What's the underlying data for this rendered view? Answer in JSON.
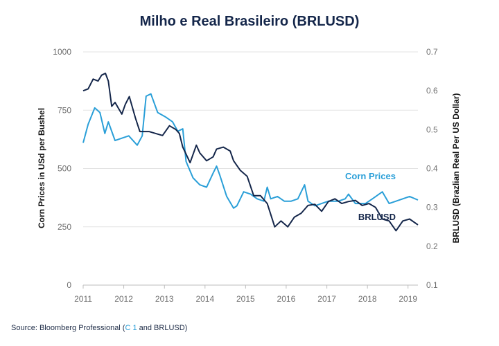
{
  "chart_data": {
    "type": "line",
    "title": "Milho e Real Brasileiro (BRLUSD)",
    "x_ticks": [
      "2011",
      "2012",
      "2013",
      "2014",
      "2015",
      "2016",
      "2017",
      "2018",
      "2019"
    ],
    "x_range": [
      "2011-01-01",
      "2019-03-31"
    ],
    "y_left": {
      "label": "Corn Prices in USd per Bushel",
      "ticks": [
        "0",
        "250",
        "500",
        "750",
        "1000"
      ],
      "range": [
        0,
        1000
      ]
    },
    "y_right": {
      "label": "BRLUSD (Brazlian Real Per US Dollar)",
      "ticks": [
        "0.1",
        "0.2",
        "0.3",
        "0.4",
        "0.5",
        "0.6",
        "0.7"
      ],
      "range": [
        0.1,
        0.7
      ]
    },
    "grid": true,
    "series": [
      {
        "name": "Corn Prices",
        "axis": "left",
        "color": "#2a9fd8",
        "points": [
          [
            "2011-01-01",
            610
          ],
          [
            "2011-02-15",
            690
          ],
          [
            "2011-04-15",
            760
          ],
          [
            "2011-06-01",
            740
          ],
          [
            "2011-07-15",
            650
          ],
          [
            "2011-08-15",
            700
          ],
          [
            "2011-10-15",
            620
          ],
          [
            "2011-12-15",
            630
          ],
          [
            "2012-02-15",
            640
          ],
          [
            "2012-05-01",
            600
          ],
          [
            "2012-06-15",
            640
          ],
          [
            "2012-07-20",
            810
          ],
          [
            "2012-09-01",
            820
          ],
          [
            "2012-11-01",
            740
          ],
          [
            "2013-01-15",
            720
          ],
          [
            "2013-03-15",
            700
          ],
          [
            "2013-05-01",
            660
          ],
          [
            "2013-06-15",
            670
          ],
          [
            "2013-07-15",
            530
          ],
          [
            "2013-09-15",
            460
          ],
          [
            "2013-11-15",
            430
          ],
          [
            "2014-01-15",
            420
          ],
          [
            "2014-03-15",
            480
          ],
          [
            "2014-04-15",
            510
          ],
          [
            "2014-05-15",
            470
          ],
          [
            "2014-07-15",
            380
          ],
          [
            "2014-09-15",
            330
          ],
          [
            "2014-10-15",
            340
          ],
          [
            "2014-12-15",
            400
          ],
          [
            "2015-02-15",
            390
          ],
          [
            "2015-04-15",
            370
          ],
          [
            "2015-06-15",
            360
          ],
          [
            "2015-07-15",
            420
          ],
          [
            "2015-08-15",
            370
          ],
          [
            "2015-10-15",
            380
          ],
          [
            "2015-12-15",
            360
          ],
          [
            "2016-02-15",
            360
          ],
          [
            "2016-04-15",
            370
          ],
          [
            "2016-05-15",
            400
          ],
          [
            "2016-06-15",
            430
          ],
          [
            "2016-07-15",
            360
          ],
          [
            "2016-09-15",
            340
          ],
          [
            "2016-11-15",
            350
          ],
          [
            "2017-01-15",
            360
          ],
          [
            "2017-04-15",
            360
          ],
          [
            "2017-06-15",
            370
          ],
          [
            "2017-07-15",
            390
          ],
          [
            "2017-09-15",
            350
          ],
          [
            "2017-12-15",
            350
          ],
          [
            "2018-02-15",
            370
          ],
          [
            "2018-04-15",
            390
          ],
          [
            "2018-05-15",
            400
          ],
          [
            "2018-07-15",
            350
          ],
          [
            "2018-09-15",
            360
          ],
          [
            "2018-11-15",
            370
          ],
          [
            "2019-01-15",
            380
          ],
          [
            "2019-03-31",
            365
          ]
        ]
      },
      {
        "name": "BRLUSD",
        "axis": "right",
        "color": "#14264a",
        "points": [
          [
            "2011-01-01",
            0.6
          ],
          [
            "2011-02-15",
            0.605
          ],
          [
            "2011-04-01",
            0.63
          ],
          [
            "2011-05-15",
            0.625
          ],
          [
            "2011-06-15",
            0.64
          ],
          [
            "2011-07-20",
            0.645
          ],
          [
            "2011-08-15",
            0.625
          ],
          [
            "2011-09-15",
            0.56
          ],
          [
            "2011-10-15",
            0.57
          ],
          [
            "2011-12-15",
            0.54
          ],
          [
            "2012-01-15",
            0.565
          ],
          [
            "2012-02-20",
            0.585
          ],
          [
            "2012-04-15",
            0.53
          ],
          [
            "2012-05-25",
            0.495
          ],
          [
            "2012-08-15",
            0.495
          ],
          [
            "2012-10-15",
            0.49
          ],
          [
            "2012-12-15",
            0.485
          ],
          [
            "2013-02-15",
            0.51
          ],
          [
            "2013-04-15",
            0.5
          ],
          [
            "2013-05-15",
            0.49
          ],
          [
            "2013-06-15",
            0.455
          ],
          [
            "2013-08-20",
            0.415
          ],
          [
            "2013-10-15",
            0.46
          ],
          [
            "2013-11-15",
            0.44
          ],
          [
            "2014-01-15",
            0.42
          ],
          [
            "2014-03-15",
            0.43
          ],
          [
            "2014-04-15",
            0.45
          ],
          [
            "2014-06-15",
            0.455
          ],
          [
            "2014-08-15",
            0.445
          ],
          [
            "2014-09-15",
            0.42
          ],
          [
            "2014-11-15",
            0.395
          ],
          [
            "2015-01-15",
            0.38
          ],
          [
            "2015-03-15",
            0.33
          ],
          [
            "2015-05-15",
            0.33
          ],
          [
            "2015-07-15",
            0.31
          ],
          [
            "2015-09-20",
            0.25
          ],
          [
            "2015-11-15",
            0.265
          ],
          [
            "2016-01-15",
            0.25
          ],
          [
            "2016-03-15",
            0.275
          ],
          [
            "2016-05-15",
            0.285
          ],
          [
            "2016-07-15",
            0.305
          ],
          [
            "2016-09-15",
            0.308
          ],
          [
            "2016-11-15",
            0.29
          ],
          [
            "2017-01-15",
            0.315
          ],
          [
            "2017-03-15",
            0.322
          ],
          [
            "2017-05-15",
            0.31
          ],
          [
            "2017-07-15",
            0.315
          ],
          [
            "2017-09-15",
            0.318
          ],
          [
            "2017-11-15",
            0.305
          ],
          [
            "2018-01-15",
            0.31
          ],
          [
            "2018-03-15",
            0.3
          ],
          [
            "2018-05-15",
            0.27
          ],
          [
            "2018-07-15",
            0.265
          ],
          [
            "2018-09-15",
            0.24
          ],
          [
            "2018-11-15",
            0.265
          ],
          [
            "2019-01-15",
            0.27
          ],
          [
            "2019-03-31",
            0.255
          ]
        ]
      }
    ]
  },
  "source": {
    "prefix": "Source: Bloomberg Professional (",
    "highlight": "C 1",
    "suffix": " and BRLUSD)"
  }
}
